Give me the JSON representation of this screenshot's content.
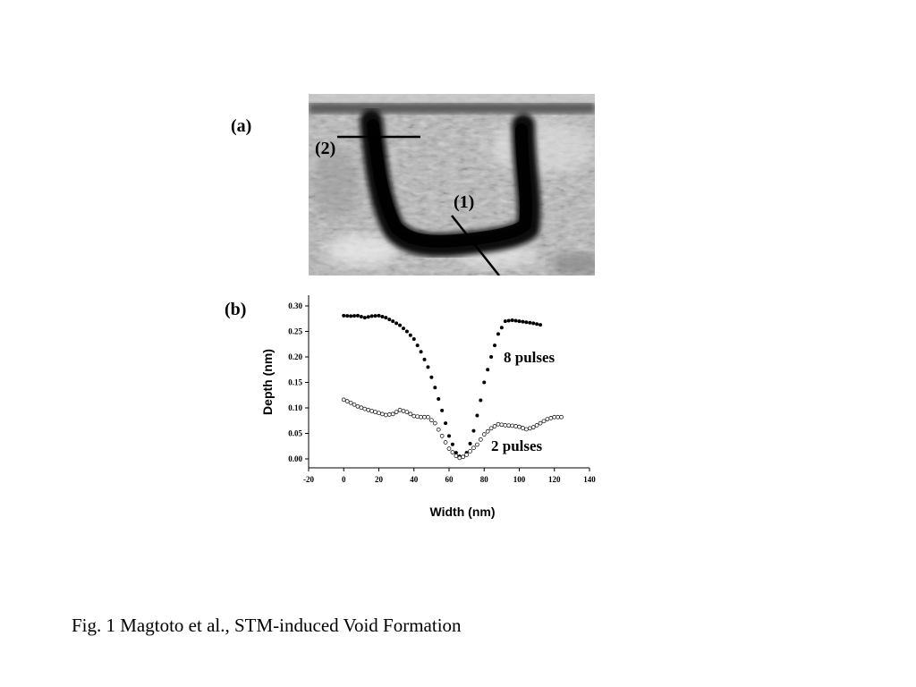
{
  "figure": {
    "panel_a_label": "(a)",
    "panel_b_label": "(b)",
    "annotation_2": "(2)",
    "annotation_1": "(1)",
    "caption": "Fig. 1 Magtoto et al., STM-induced Void Formation"
  },
  "chart_data": {
    "type": "scatter",
    "xlabel": "Width (nm)",
    "ylabel": "Depth (nm)",
    "xlim": [
      -20,
      140
    ],
    "ylim": [
      0,
      0.3
    ],
    "xticks": [
      "-20",
      "0",
      "20",
      "40",
      "60",
      "80",
      "100",
      "120",
      "140"
    ],
    "yticks": [
      "0.00",
      "0.05",
      "0.10",
      "0.15",
      "0.20",
      "0.25",
      "0.30"
    ],
    "series": [
      {
        "name": "8 pulses",
        "marker": "filled",
        "x": [
          0,
          4,
          8,
          12,
          16,
          20,
          24,
          28,
          32,
          36,
          40,
          44,
          48,
          52,
          56,
          60,
          64,
          66,
          68,
          70,
          72,
          74,
          76,
          78,
          80,
          84,
          88,
          92,
          96,
          100,
          104,
          108,
          112
        ],
        "y": [
          0.281,
          0.28,
          0.281,
          0.277,
          0.28,
          0.281,
          0.277,
          0.27,
          0.262,
          0.25,
          0.235,
          0.21,
          0.18,
          0.14,
          0.095,
          0.045,
          0.012,
          0.005,
          0.004,
          0.012,
          0.03,
          0.055,
          0.085,
          0.115,
          0.15,
          0.2,
          0.245,
          0.27,
          0.272,
          0.27,
          0.268,
          0.266,
          0.263
        ]
      },
      {
        "name": "2 pulses",
        "marker": "open",
        "x": [
          0,
          4,
          8,
          12,
          16,
          20,
          24,
          28,
          32,
          36,
          40,
          44,
          48,
          52,
          56,
          60,
          64,
          66,
          68,
          70,
          72,
          76,
          80,
          84,
          88,
          92,
          96,
          100,
          104,
          108,
          112,
          116,
          120,
          124
        ],
        "y": [
          0.116,
          0.11,
          0.103,
          0.098,
          0.094,
          0.09,
          0.086,
          0.088,
          0.096,
          0.092,
          0.084,
          0.082,
          0.082,
          0.07,
          0.045,
          0.02,
          0.006,
          0.002,
          0.004,
          0.008,
          0.015,
          0.028,
          0.048,
          0.06,
          0.068,
          0.066,
          0.065,
          0.063,
          0.058,
          0.062,
          0.07,
          0.078,
          0.082,
          0.082
        ]
      }
    ]
  }
}
